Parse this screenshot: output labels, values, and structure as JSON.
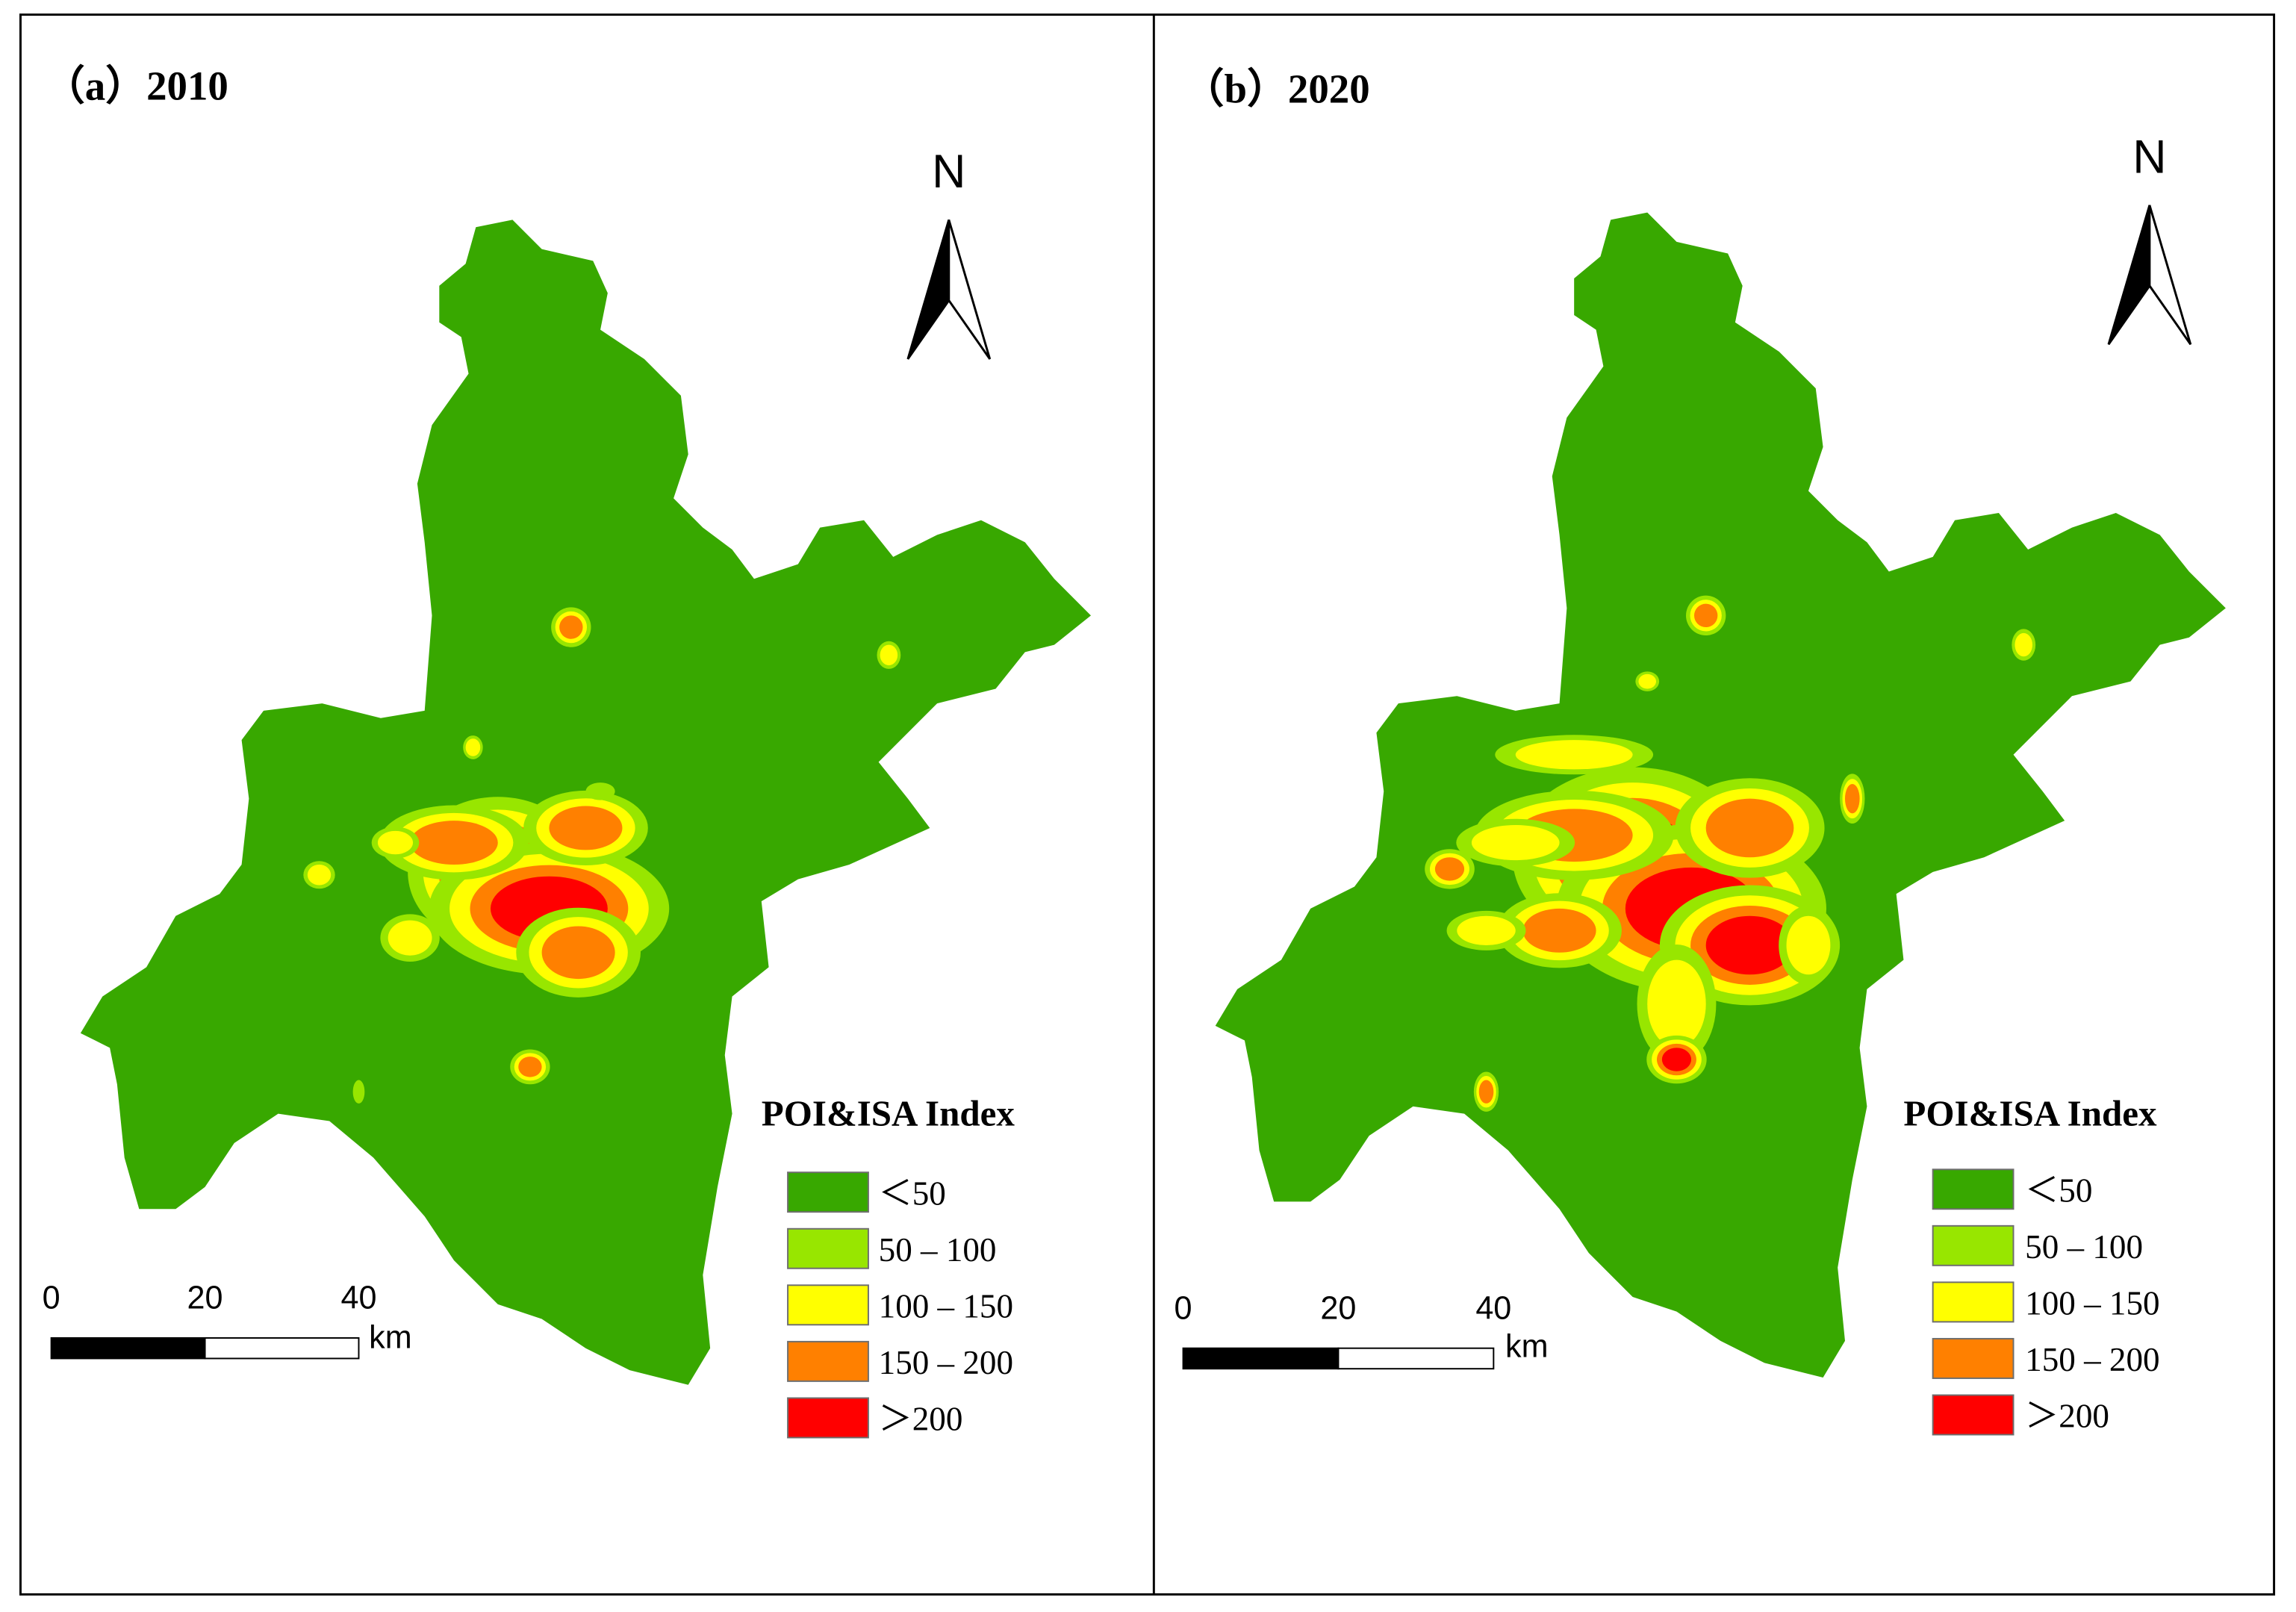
{
  "panels": [
    {
      "title": "（a）2010",
      "north": "N",
      "scale": {
        "ticks": [
          "0",
          "20",
          "40"
        ],
        "unit": "km"
      },
      "legend": {
        "title": "POI&ISA Index",
        "items": [
          {
            "label": "＜50",
            "color": "#38a800"
          },
          {
            "label": "50 – 100",
            "color": "#98e600"
          },
          {
            "label": "100 – 150",
            "color": "#ffff00"
          },
          {
            "label": "150 – 200",
            "color": "#ff8000"
          },
          {
            "label": "＞200",
            "color": "#ff0000"
          }
        ]
      }
    },
    {
      "title": "（b）2020",
      "north": "N",
      "scale": {
        "ticks": [
          "0",
          "20",
          "40"
        ],
        "unit": "km"
      },
      "legend": {
        "title": "POI&ISA Index",
        "items": [
          {
            "label": "＜50",
            "color": "#38a800"
          },
          {
            "label": "50 – 100",
            "color": "#98e600"
          },
          {
            "label": "100 – 150",
            "color": "#ffff00"
          },
          {
            "label": "150 – 200",
            "color": "#ff8000"
          },
          {
            "label": "＞200",
            "color": "#ff0000"
          }
        ]
      }
    }
  ]
}
